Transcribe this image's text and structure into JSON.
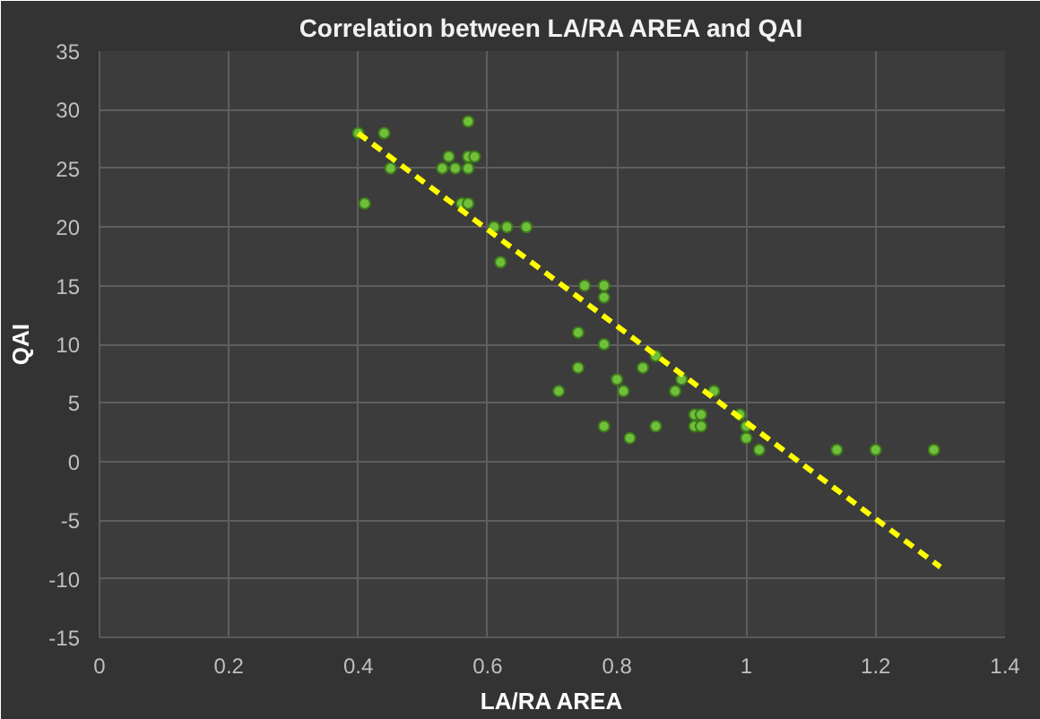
{
  "chart_data": {
    "type": "scatter",
    "title": "Correlation between LA/RA AREA and QAI",
    "xlabel": "LA/RA AREA",
    "ylabel": "QAI",
    "xlim": [
      0,
      1.4
    ],
    "xticks": [
      0,
      0.2,
      0.4,
      0.6,
      0.8,
      1,
      1.2,
      1.4
    ],
    "ylim": [
      -15,
      35
    ],
    "yticks": [
      -15,
      -10,
      -5,
      0,
      5,
      10,
      15,
      20,
      25,
      30,
      35
    ],
    "grid": true,
    "marker": "circle",
    "series": [
      {
        "color": "#6fbf3a",
        "x": [
          0.4,
          0.44,
          0.41,
          0.45,
          0.53,
          0.54,
          0.55,
          0.57,
          0.57,
          0.58,
          0.57,
          0.56,
          0.57,
          0.61,
          0.62,
          0.63,
          0.66,
          0.75,
          0.78,
          0.78,
          0.74,
          0.78,
          0.74,
          0.71,
          0.8,
          0.81,
          0.78,
          0.82,
          0.84,
          0.86,
          0.86,
          0.89,
          0.9,
          0.92,
          0.92,
          0.93,
          0.93,
          0.95,
          0.99,
          1.0,
          1.0,
          1.02,
          1.14,
          1.2,
          1.29
        ],
        "values": [
          28,
          28,
          22,
          25,
          25,
          26,
          25,
          26,
          25,
          26,
          29,
          22,
          22,
          20,
          17,
          20,
          20,
          15,
          15,
          14,
          11,
          10,
          8,
          6,
          7,
          6,
          3,
          2,
          8,
          9,
          3,
          6,
          7,
          4,
          3,
          4,
          3,
          6,
          4,
          3,
          2,
          1,
          1,
          1,
          1
        ]
      },
      {
        "type": "line",
        "color": "#ffff00",
        "line_style": "dashed",
        "marker": "none",
        "x": [
          0.4,
          1.3
        ],
        "values": [
          28,
          -9
        ]
      }
    ]
  }
}
